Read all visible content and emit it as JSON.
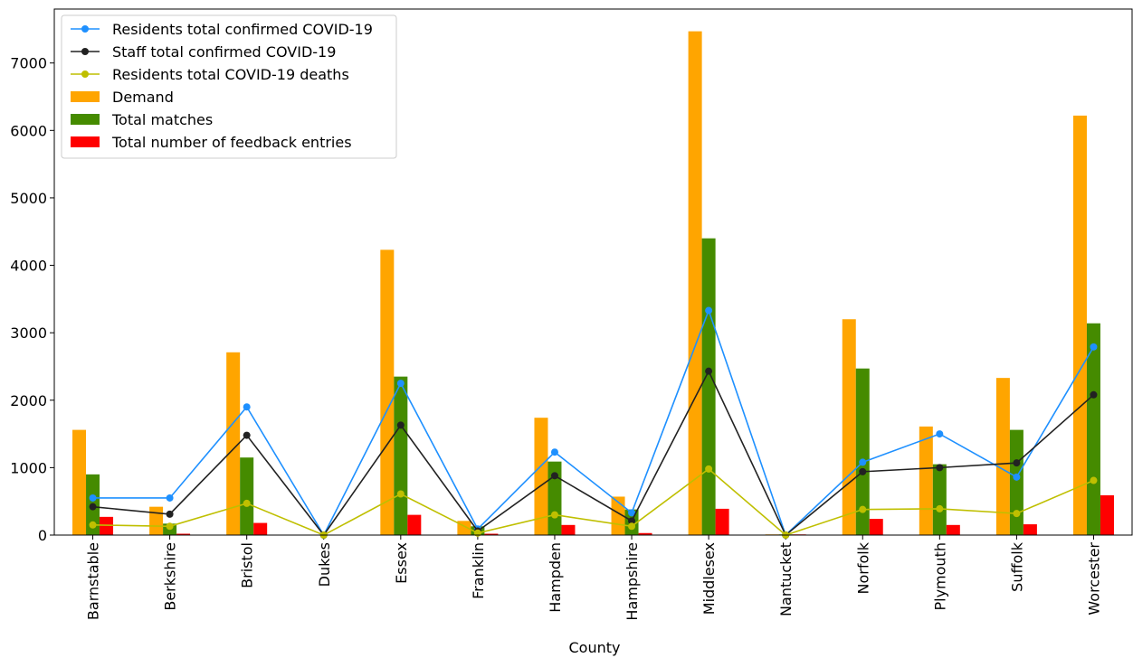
{
  "chart_data": {
    "type": "bar",
    "xlabel": "County",
    "ylabel": "",
    "ylim": [
      0,
      7800
    ],
    "yticks": [
      0,
      1000,
      2000,
      3000,
      4000,
      5000,
      6000,
      7000
    ],
    "grid": false,
    "legend_position": "top-left",
    "categories": [
      "Barnstable",
      "Berkshire",
      "Bristol",
      "Dukes",
      "Essex",
      "Franklin",
      "Hampden",
      "Hampshire",
      "Middlesex",
      "Nantucket",
      "Norfolk",
      "Plymouth",
      "Suffolk",
      "Worcester"
    ],
    "bar_series": [
      {
        "name": "Demand",
        "color": "#ffa500",
        "values": [
          1560,
          420,
          2710,
          0,
          4230,
          210,
          1740,
          570,
          7470,
          10,
          3200,
          1610,
          2330,
          6220
        ]
      },
      {
        "name": "Total matches",
        "color": "#458b00",
        "values": [
          900,
          170,
          1150,
          0,
          2350,
          130,
          1090,
          380,
          4400,
          10,
          2470,
          1050,
          1560,
          3140
        ]
      },
      {
        "name": "Total number of feedback entries",
        "color": "#ff0000",
        "values": [
          270,
          20,
          180,
          0,
          300,
          20,
          150,
          30,
          390,
          10,
          240,
          150,
          160,
          590
        ]
      }
    ],
    "line_series": [
      {
        "name": "Residents total confirmed COVID-19",
        "color": "#1e90ff",
        "values": [
          550,
          550,
          1900,
          0,
          2250,
          90,
          1230,
          330,
          3330,
          0,
          1080,
          1500,
          860,
          2790
        ]
      },
      {
        "name": "Staff total confirmed COVID-19",
        "color": "#222222",
        "values": [
          420,
          310,
          1480,
          0,
          1630,
          60,
          880,
          210,
          2430,
          0,
          940,
          1000,
          1070,
          2080
        ]
      },
      {
        "name": "Residents total COVID-19 deaths",
        "color": "#bfbf00",
        "values": [
          150,
          130,
          470,
          0,
          610,
          30,
          300,
          130,
          980,
          0,
          380,
          390,
          320,
          810
        ]
      }
    ]
  }
}
